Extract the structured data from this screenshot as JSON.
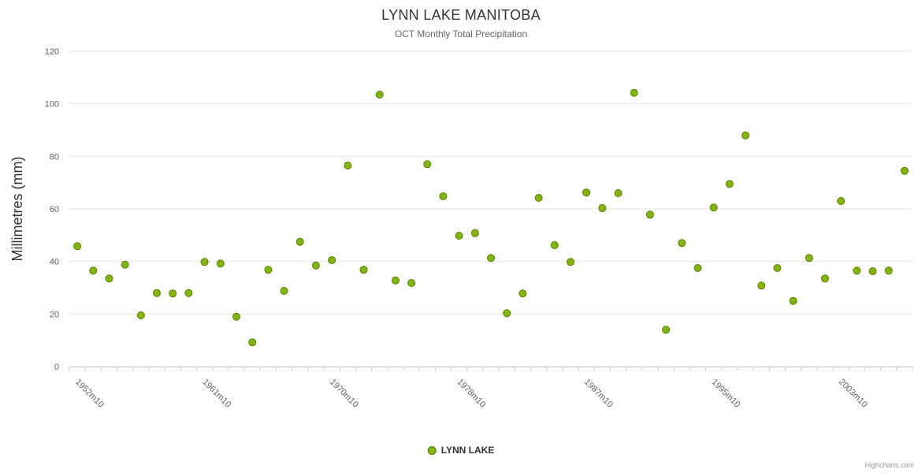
{
  "chart_data": {
    "type": "scatter",
    "title": "LYNN LAKE MANITOBA",
    "subtitle": "OCT Monthly Total Precipitation",
    "ylabel": "Millimetres (mm)",
    "xlabel": "",
    "ylim": [
      0,
      120
    ],
    "y_ticks": [
      0,
      20,
      40,
      60,
      80,
      100,
      120
    ],
    "grid": "horizontal",
    "legend_position": "bottom-center",
    "x_tick_labels": [
      {
        "label": "1952m10",
        "index": 0
      },
      {
        "label": "1961m10",
        "index": 8
      },
      {
        "label": "1970m10",
        "index": 16
      },
      {
        "label": "1978m10",
        "index": 24
      },
      {
        "label": "1987m10",
        "index": 32
      },
      {
        "label": "1995m10",
        "index": 40
      },
      {
        "label": "2003m10",
        "index": 48
      }
    ],
    "series": [
      {
        "name": "LYNN LAKE",
        "values": [
          45.8,
          36.5,
          33.5,
          38.8,
          19.5,
          28,
          27.8,
          28,
          39.8,
          39.2,
          19,
          9.2,
          36.8,
          28.8,
          47.5,
          38.5,
          40.5,
          76.5,
          36.8,
          103.5,
          32.8,
          31.8,
          77,
          64.8,
          49.8,
          50.8,
          41.3,
          20.3,
          27.8,
          64.2,
          46.2,
          39.8,
          66.2,
          60.3,
          66,
          104.2,
          57.8,
          14,
          47,
          37.5,
          60.5,
          69.5,
          88,
          30.8,
          37.5,
          25,
          41.3,
          33.5,
          63,
          36.5,
          36.3,
          36.5,
          74.5
        ]
      }
    ]
  },
  "colors": {
    "marker_fill": "#84b414",
    "marker_stroke": "#5a7d00",
    "grid": "#e6e6e6",
    "axis_line": "#c9c9c9",
    "tick_label": "#606060",
    "title_text": "#333333",
    "subtitle_text": "#666666",
    "legend_text": "#333333",
    "credits_text": "#999999"
  },
  "credits": "Highcharts.com"
}
